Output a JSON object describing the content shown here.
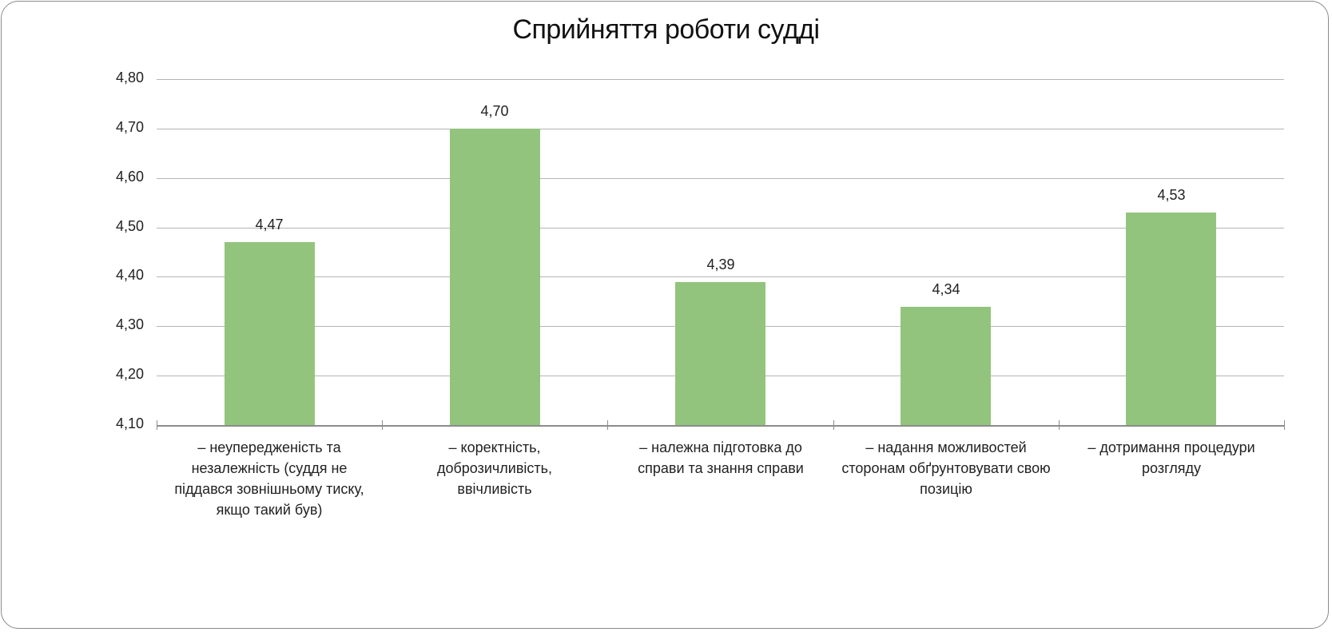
{
  "chart_data": {
    "type": "bar",
    "title": "Сприйняття роботи судді",
    "xlabel": "",
    "ylabel": "",
    "ylim": [
      4.1,
      4.8
    ],
    "grid": true,
    "legend": "none",
    "bar_color": "#93c47d",
    "yticks": [
      "4,80",
      "4,70",
      "4,60",
      "4,50",
      "4,40",
      "4,30",
      "4,20",
      "4,10"
    ],
    "categories": [
      "– неупередженість та незалежність (суддя не піддався зовнішньому тиску, якщо такий був)",
      "– коректність, доброзичливість, ввічливість",
      "– належна підготовка до справи та знання справи",
      "– надання можливостей сторонам обґрунтовувати свою позицію",
      "– дотримання процедури розгляду"
    ],
    "values": [
      4.47,
      4.7,
      4.39,
      4.34,
      4.53
    ],
    "value_labels": [
      "4,47",
      "4,70",
      "4,39",
      "4,34",
      "4,53"
    ]
  },
  "labels": {
    "cat0": [
      "– неупередженість та",
      "незалежність (суддя не",
      "піддався зовнішньому тиску,",
      "якщо такий був)"
    ],
    "cat1": [
      "– коректність, доброзичливість,",
      "ввічливість"
    ],
    "cat2": [
      "– належна підготовка до",
      "справи та знання справи"
    ],
    "cat3": [
      "– надання можливостей",
      "сторонам обґрунтовувати свою",
      "позицію"
    ],
    "cat4": [
      "– дотримання процедури",
      "розгляду"
    ]
  }
}
